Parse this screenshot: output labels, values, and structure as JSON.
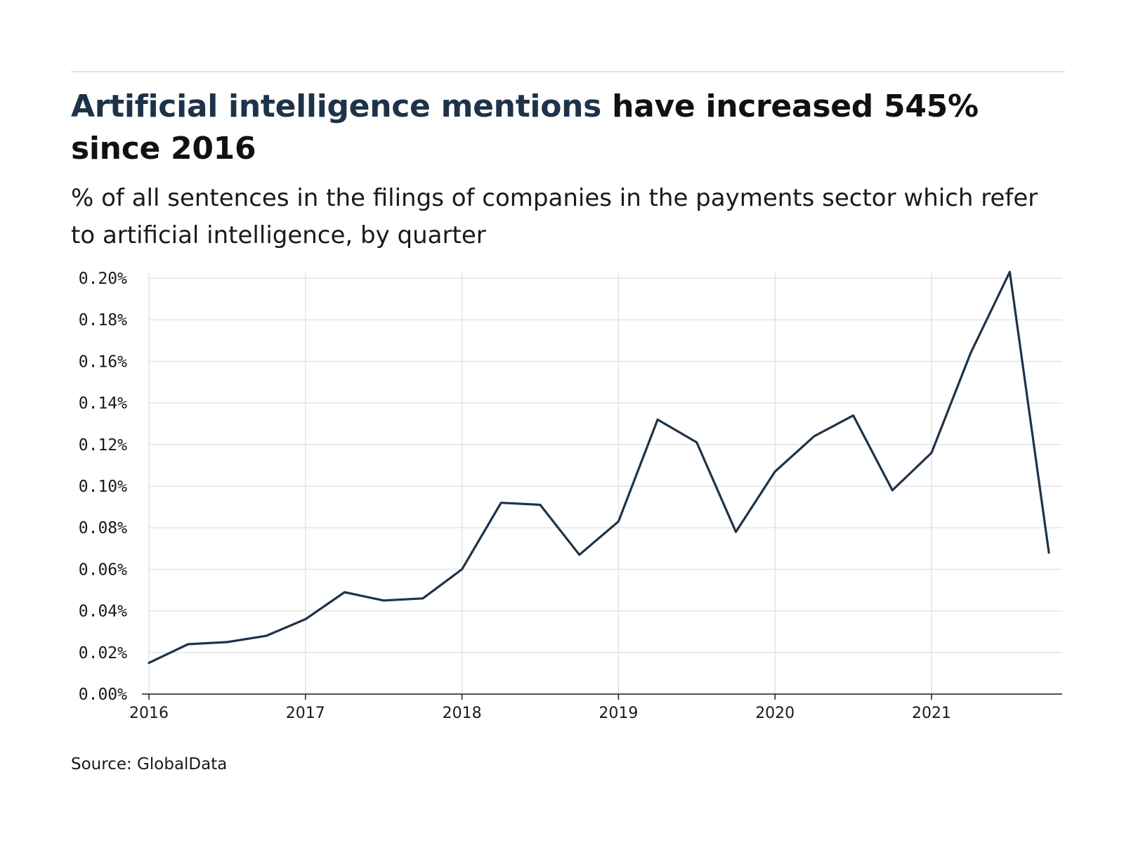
{
  "header": {
    "title_highlight": "Artificial intelligence mentions",
    "title_rest": " have increased 545% since 2016",
    "subtitle": "% of all sentences in the filings of companies in the payments sector which refer to artificial intelligence, by quarter"
  },
  "footer": {
    "source": "Source: GlobalData"
  },
  "colors": {
    "highlight": "#1e3349",
    "line": "#1e3349",
    "grid": "#e4e4e4",
    "axis": "#1a1a1a"
  },
  "chart_data": {
    "type": "line",
    "title": "Artificial intelligence mentions have increased 545% since 2016",
    "subtitle": "% of all sentences in the filings of companies in the payments sector which refer to artificial intelligence, by quarter",
    "xlabel": "",
    "ylabel": "",
    "x": [
      "2016 Q1",
      "2016 Q2",
      "2016 Q3",
      "2016 Q4",
      "2017 Q1",
      "2017 Q2",
      "2017 Q3",
      "2017 Q4",
      "2018 Q1",
      "2018 Q2",
      "2018 Q3",
      "2018 Q4",
      "2019 Q1",
      "2019 Q2",
      "2019 Q3",
      "2019 Q4",
      "2020 Q1",
      "2020 Q2",
      "2020 Q3",
      "2020 Q4",
      "2021 Q1",
      "2021 Q2",
      "2021 Q3",
      "2021 Q4"
    ],
    "series": [
      {
        "values": [
          0.015,
          0.024,
          0.025,
          0.028,
          0.036,
          0.049,
          0.045,
          0.046,
          0.06,
          0.092,
          0.091,
          0.067,
          0.083,
          0.132,
          0.121,
          0.078,
          0.107,
          0.124,
          0.134,
          0.098,
          0.116,
          0.164,
          0.203,
          0.068
        ]
      }
    ],
    "x_tick_labels": [
      "2016",
      "2017",
      "2018",
      "2019",
      "2020",
      "2021"
    ],
    "y_tick_labels": [
      "0.00%",
      "0.02%",
      "0.04%",
      "0.06%",
      "0.08%",
      "0.10%",
      "0.12%",
      "0.14%",
      "0.16%",
      "0.18%",
      "0.20%"
    ],
    "ylim": [
      0,
      0.2
    ],
    "grid": true,
    "legend": "none"
  }
}
